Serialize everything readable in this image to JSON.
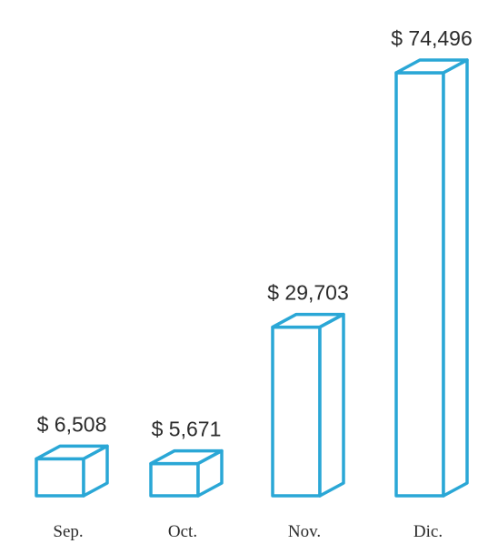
{
  "chart_data": {
    "type": "bar",
    "title": "",
    "xlabel": "",
    "ylabel": "",
    "categories": [
      "Sep.",
      "Oct.",
      "Nov.",
      "Dic."
    ],
    "values": [
      6508,
      5671,
      29703,
      74496
    ],
    "value_labels": [
      "$ 6,508",
      "$ 5,671",
      "$ 29,703",
      "$ 74,496"
    ],
    "ylim": [
      0,
      74496
    ],
    "grid": false,
    "style": "3d-outlined-boxes",
    "bar_color": "#2aa7d6"
  }
}
